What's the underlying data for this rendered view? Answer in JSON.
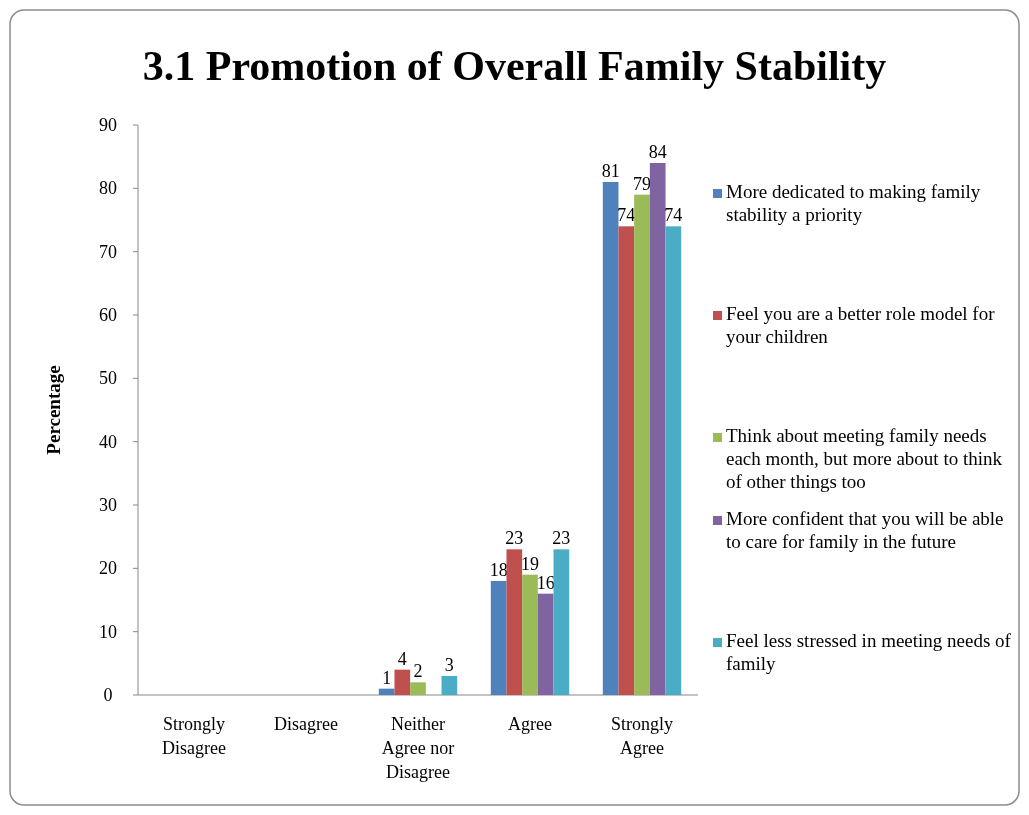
{
  "chart_data": {
    "type": "bar",
    "title": "3.1  Promotion of Overall Family Stability",
    "ylabel": "Percentage",
    "categories": [
      "Strongly Disagree",
      "Disagree",
      "Neither Agree nor Disagree",
      "Agree",
      "Strongly Agree"
    ],
    "series": [
      {
        "name": "More dedicated to making family stability a priority",
        "color": "#4f81bd",
        "values": [
          null,
          null,
          1,
          18,
          81
        ]
      },
      {
        "name": "Feel you are a better role model for your children",
        "color": "#c0504d",
        "values": [
          null,
          null,
          4,
          23,
          74
        ]
      },
      {
        "name": "Think about meeting family needs each month, but more about to think of other things too",
        "color": "#9bbb59",
        "values": [
          null,
          null,
          2,
          19,
          79
        ]
      },
      {
        "name": "More confident that you will be able to care for family in the future",
        "color": "#8064a2",
        "values": [
          null,
          null,
          null,
          16,
          84
        ]
      },
      {
        "name": "Feel less stressed in meeting needs of family",
        "color": "#4bacc6",
        "values": [
          null,
          null,
          3,
          23,
          74
        ]
      }
    ],
    "ylim": [
      0,
      90
    ],
    "yticks": [
      0,
      10,
      20,
      30,
      40,
      50,
      60,
      70,
      80,
      90
    ],
    "grid": false,
    "legend": "right",
    "data_labels": true
  }
}
